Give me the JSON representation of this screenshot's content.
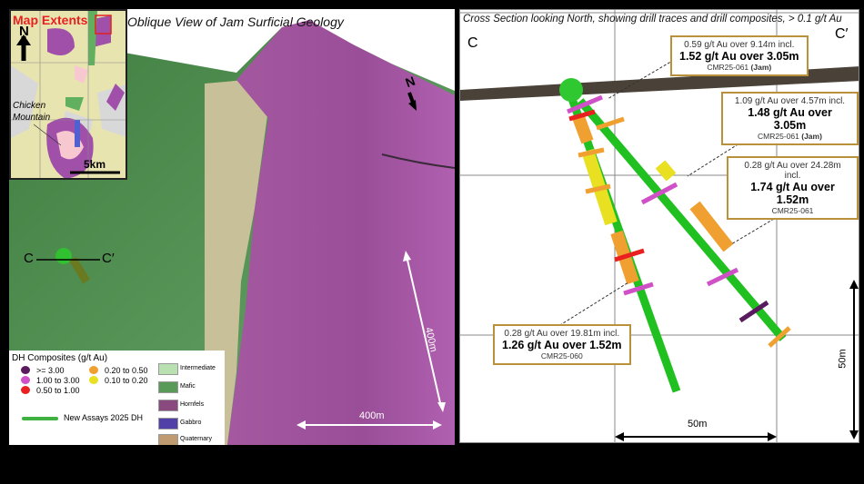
{
  "left_panel": {
    "title": "Oblique View of Jam Surficial Geology",
    "north_label": "N",
    "section_start": "C",
    "section_end": "C′",
    "scale_horizontal": "400m",
    "scale_vertical": "400m",
    "inset": {
      "title": "Map Extents",
      "north_label": "N",
      "place_label": "Chicken Mountain",
      "scale": "5km"
    },
    "legend": {
      "title": "DH Composites (g/t Au)",
      "composites": [
        {
          "label": ">= 3.00",
          "color": "#5a1a5e"
        },
        {
          "label": "1.00 to 3.00",
          "color": "#d050c8"
        },
        {
          "label": "0.50 to 1.00",
          "color": "#e82020"
        },
        {
          "label": "0.20 to 0.50",
          "color": "#f0a030"
        },
        {
          "label": "0.10 to 0.20",
          "color": "#e8e020"
        }
      ],
      "drillhole_label": "New Assays 2025 DH",
      "units": [
        {
          "label": "Intermediate",
          "color": "#b8e0b0"
        },
        {
          "label": "Mafic",
          "color": "#5a9a58"
        },
        {
          "label": "Hornfels",
          "color": "#8a4a80"
        },
        {
          "label": "Gabbro",
          "color": "#5040a8"
        },
        {
          "label": "Quaternary",
          "color": "#c09a70"
        }
      ]
    }
  },
  "right_panel": {
    "title": "Cross Section looking North, showing drill traces and drill composites, > 0.1 g/t Au",
    "section_start": "C",
    "section_end": "C′",
    "scale_horizontal": "50m",
    "scale_vertical": "50m",
    "callouts": [
      {
        "line1": "0.59 g/t Au over 9.14m incl.",
        "line2": "1.52 g/t Au over 3.05m",
        "hole": "CMR25-061",
        "tag": "(Jam)"
      },
      {
        "line1": "1.09 g/t Au over 4.57m incl.",
        "line2": "1.48 g/t Au over 3.05m",
        "hole": "CMR25-061",
        "tag": "(Jam)"
      },
      {
        "line1": "0.28 g/t Au over 24.28m incl.",
        "line2": "1.74 g/t Au over 1.52m",
        "hole": "CMR25-061",
        "tag": ""
      },
      {
        "line1": "0.28 g/t Au over 19.81m incl.",
        "line2": "1.26 g/t Au over 1.52m",
        "hole": "CMR25-060",
        "tag": ""
      }
    ]
  }
}
